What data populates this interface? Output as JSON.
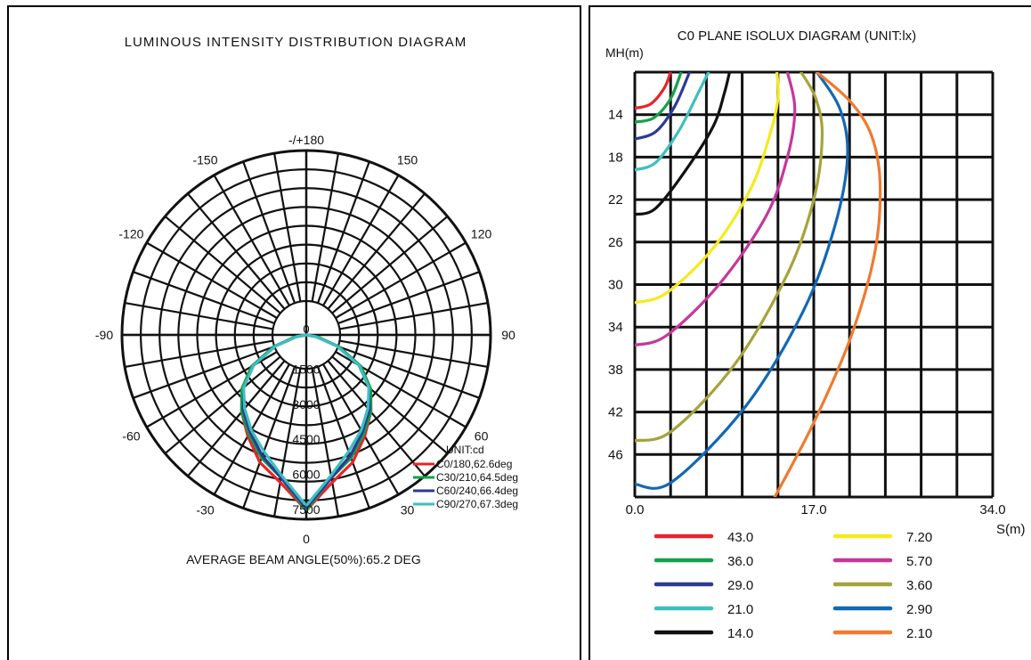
{
  "left": {
    "title": "LUMINOUS INTENSITY DISTRIBUTION DIAGRAM",
    "angle_labels": [
      {
        "text": "-/+180",
        "deg": 180
      },
      {
        "text": "-150",
        "deg": -150
      },
      {
        "text": "150",
        "deg": 150
      },
      {
        "text": "-120",
        "deg": -120
      },
      {
        "text": "120",
        "deg": 120
      },
      {
        "text": "-90",
        "deg": -90
      },
      {
        "text": "90",
        "deg": 90
      },
      {
        "text": "-60",
        "deg": -60
      },
      {
        "text": "60",
        "deg": 60
      },
      {
        "text": "-30",
        "deg": -30
      },
      {
        "text": "30",
        "deg": 30
      },
      {
        "text": "0",
        "deg": 0
      }
    ],
    "center_zero": "0",
    "radial_labels": [
      "1500",
      "3000",
      "4500",
      "6000",
      "7500"
    ],
    "unit": "UNIT:cd",
    "beam_note": "AVERAGE BEAM ANGLE(50%):65.2 DEG"
  },
  "right": {
    "title": "C0 PLANE ISOLUX DIAGRAM (UNIT:lx)",
    "y_axis_label": "MH(m)",
    "x_axis_label": "S(m)",
    "x_ticks": [
      "0.0",
      "17.0",
      "34.0"
    ],
    "y_ticks": [
      "14",
      "18",
      "22",
      "26",
      "30",
      "34",
      "38",
      "42",
      "46"
    ]
  },
  "chart_data": [
    {
      "type": "line",
      "subtype": "polar",
      "title": "LUMINOUS INTENSITY DISTRIBUTION DIAGRAM",
      "unit": "UNIT:cd",
      "radial_max": 7500,
      "radial_ticks": [
        1500,
        3000,
        4500,
        6000,
        7500
      ],
      "angle_ticks": [
        -180,
        -150,
        -120,
        -90,
        -60,
        -30,
        0,
        30,
        60,
        90,
        120,
        150,
        180
      ],
      "series": [
        {
          "name": "C0/180,62.6deg",
          "color": "#e8232a",
          "angles": [
            0,
            10,
            20,
            30,
            40,
            50,
            60,
            70,
            80,
            90
          ],
          "values": [
            7500,
            6400,
            5800,
            5000,
            4300,
            3600,
            2700,
            1500,
            500,
            0
          ]
        },
        {
          "name": "C30/210,64.5deg",
          "color": "#13a14a",
          "angles": [
            0,
            10,
            20,
            30,
            40,
            50,
            60,
            70,
            80,
            90
          ],
          "values": [
            7500,
            6200,
            5600,
            4900,
            4300,
            3600,
            2700,
            1500,
            500,
            0
          ]
        },
        {
          "name": "C60/240,66.4deg",
          "color": "#2b3a96",
          "angles": [
            0,
            10,
            20,
            30,
            40,
            50,
            60,
            70,
            80,
            90
          ],
          "values": [
            7400,
            6200,
            5500,
            4800,
            4200,
            3500,
            2600,
            1400,
            400,
            0
          ]
        },
        {
          "name": "C90/270,67.3deg",
          "color": "#3ebfbf",
          "angles": [
            0,
            10,
            20,
            30,
            40,
            50,
            60,
            70,
            80,
            90
          ],
          "values": [
            7300,
            6100,
            5300,
            4700,
            4100,
            3500,
            2600,
            1400,
            400,
            0
          ]
        }
      ],
      "annotation": "AVERAGE BEAM ANGLE(50%):65.2 DEG"
    },
    {
      "type": "line",
      "subtype": "isolux",
      "title": "C0 PLANE ISOLUX DIAGRAM (UNIT:lx)",
      "xlabel": "S(m)",
      "ylabel": "MH(m)",
      "xlim": [
        0,
        34
      ],
      "ylim": [
        10,
        50
      ],
      "y_inverted": true,
      "series": [
        {
          "name": "43.0",
          "color": "#e8232a",
          "x": [
            0,
            1.5,
            2.8,
            3.4
          ],
          "y": [
            13.4,
            13.0,
            11.5,
            10
          ]
        },
        {
          "name": "36.0",
          "color": "#13a14a",
          "x": [
            0,
            1.8,
            3.4,
            4.4
          ],
          "y": [
            14.7,
            14.3,
            12.5,
            10
          ]
        },
        {
          "name": "29.0",
          "color": "#2b3a96",
          "x": [
            0,
            2.0,
            3.8,
            5.2
          ],
          "y": [
            16.3,
            15.6,
            13.2,
            10
          ]
        },
        {
          "name": "21.0",
          "color": "#3ebfbf",
          "x": [
            0,
            2.0,
            4.2,
            6.0,
            7.0
          ],
          "y": [
            19.2,
            18.5,
            15.5,
            12.0,
            10
          ]
        },
        {
          "name": "14.0",
          "color": "#111111",
          "x": [
            0,
            2.0,
            5.0,
            7.5,
            8.5,
            9.0
          ],
          "y": [
            23.4,
            22.8,
            19.0,
            15.0,
            12.0,
            10
          ]
        },
        {
          "name": "7.20",
          "color": "#f6ea1c",
          "x": [
            0,
            3.0,
            7.5,
            11.0,
            12.8,
            13.6,
            13.5
          ],
          "y": [
            31.7,
            30.8,
            26.5,
            21.0,
            16.0,
            12.5,
            10
          ]
        },
        {
          "name": "5.70",
          "color": "#c5379a",
          "x": [
            0,
            3.0,
            8.0,
            12.5,
            14.5,
            15.2,
            14.5
          ],
          "y": [
            35.7,
            34.8,
            30.0,
            23.5,
            18.0,
            13.5,
            10
          ]
        },
        {
          "name": "3.60",
          "color": "#a6a33b",
          "x": [
            0,
            3.5,
            9.5,
            14.5,
            17.0,
            17.8,
            17.2,
            15.8
          ],
          "y": [
            44.7,
            43.8,
            37.5,
            29.0,
            22.0,
            16.0,
            12.5,
            10
          ]
        },
        {
          "name": "2.90",
          "color": "#1268b3",
          "x": [
            0,
            3.5,
            10.5,
            16.0,
            19.0,
            20.2,
            19.5,
            17.3
          ],
          "y": [
            48.8,
            48.6,
            41.5,
            32.5,
            24.5,
            18.0,
            13.5,
            10
          ]
        },
        {
          "name": "2.10",
          "color": "#f07a2e",
          "x": [
            13.3,
            17.0,
            20.5,
            22.8,
            23.3,
            22.5,
            20.5,
            17.3
          ],
          "y": [
            50,
            43.0,
            35.0,
            27.0,
            20.5,
            16.0,
            12.8,
            10
          ]
        }
      ]
    }
  ]
}
